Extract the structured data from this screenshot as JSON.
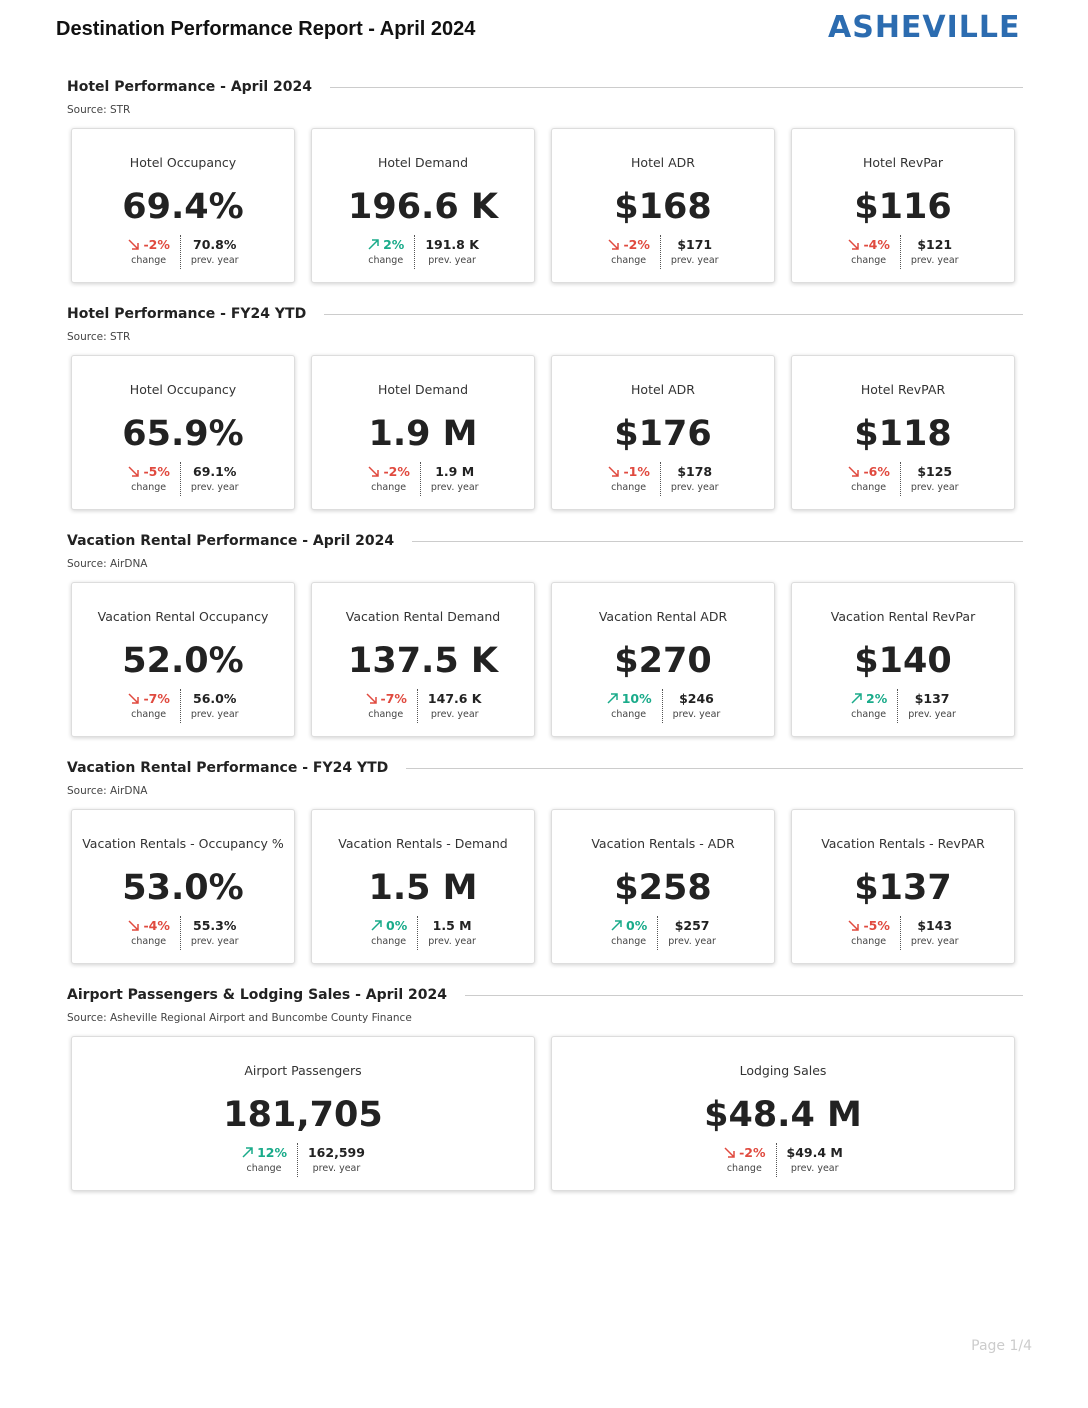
{
  "header": {
    "title": "Destination Performance Report - April 2024",
    "logo": "ASHEVILLE"
  },
  "labels": {
    "change": "change",
    "prev": "prev. year"
  },
  "sections": [
    {
      "title": "Hotel Performance - April 2024",
      "source": "Source: STR",
      "cards": [
        {
          "label": "Hotel Occupancy",
          "value": "69.4%",
          "change": "-2%",
          "direction": "down",
          "prev": "70.8%"
        },
        {
          "label": "Hotel Demand",
          "value": "196.6 K",
          "change": "2%",
          "direction": "up",
          "prev": "191.8 K"
        },
        {
          "label": "Hotel ADR",
          "value": "$168",
          "change": "-2%",
          "direction": "down",
          "prev": "$171"
        },
        {
          "label": "Hotel RevPar",
          "value": "$116",
          "change": "-4%",
          "direction": "down",
          "prev": "$121"
        }
      ]
    },
    {
      "title": "Hotel Performance - FY24 YTD",
      "source": "Source: STR",
      "cards": [
        {
          "label": "Hotel Occupancy",
          "value": "65.9%",
          "change": "-5%",
          "direction": "down",
          "prev": "69.1%"
        },
        {
          "label": "Hotel Demand",
          "value": "1.9 M",
          "change": "-2%",
          "direction": "down",
          "prev": "1.9 M"
        },
        {
          "label": "Hotel ADR",
          "value": "$176",
          "change": "-1%",
          "direction": "down",
          "prev": "$178"
        },
        {
          "label": "Hotel RevPAR",
          "value": "$118",
          "change": "-6%",
          "direction": "down",
          "prev": "$125"
        }
      ]
    },
    {
      "title": "Vacation Rental Performance - April 2024",
      "source": "Source: AirDNA",
      "cards": [
        {
          "label": "Vacation Rental Occupancy",
          "value": "52.0%",
          "change": "-7%",
          "direction": "down",
          "prev": "56.0%"
        },
        {
          "label": "Vacation Rental Demand",
          "value": "137.5 K",
          "change": "-7%",
          "direction": "down",
          "prev": "147.6 K"
        },
        {
          "label": "Vacation Rental ADR",
          "value": "$270",
          "change": "10%",
          "direction": "up",
          "prev": "$246"
        },
        {
          "label": "Vacation Rental RevPar",
          "value": "$140",
          "change": "2%",
          "direction": "up",
          "prev": "$137"
        }
      ]
    },
    {
      "title": "Vacation Rental Performance - FY24 YTD",
      "source": "Source: AirDNA",
      "cards": [
        {
          "label": "Vacation Rentals - Occupancy %",
          "value": "53.0%",
          "change": "-4%",
          "direction": "down",
          "prev": "55.3%"
        },
        {
          "label": "Vacation Rentals - Demand",
          "value": "1.5 M",
          "change": "0%",
          "direction": "up",
          "prev": "1.5 M"
        },
        {
          "label": "Vacation Rentals - ADR",
          "value": "$258",
          "change": "0%",
          "direction": "up",
          "prev": "$257"
        },
        {
          "label": "Vacation Rentals - RevPAR",
          "value": "$137",
          "change": "-5%",
          "direction": "down",
          "prev": "$143"
        }
      ]
    },
    {
      "title": "Airport Passengers & Lodging Sales - April 2024",
      "source": "Source: Asheville Regional Airport and Buncombe County Finance",
      "cards": [
        {
          "label": "Airport Passengers",
          "value": "181,705",
          "change": "12%",
          "direction": "up",
          "prev": "162,599"
        },
        {
          "label": "Lodging Sales",
          "value": "$48.4 M",
          "change": "-2%",
          "direction": "down",
          "prev": "$49.4 M"
        }
      ]
    }
  ],
  "footer": {
    "page": "Page 1/4"
  }
}
